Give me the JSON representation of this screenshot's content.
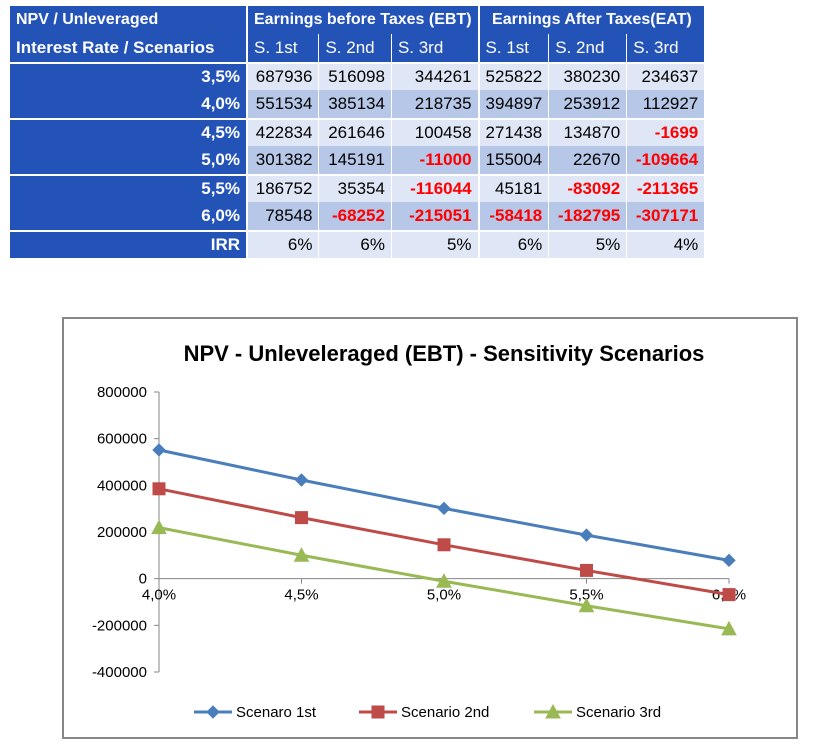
{
  "table": {
    "corner_label": "NPV / Unleveraged",
    "group_headers": [
      "Earnings before Taxes (EBT)",
      "Earnings After Taxes(EAT)"
    ],
    "row_header_label": "Interest Rate / Scenarios",
    "scenario_headers": [
      "S. 1st",
      "S. 2nd",
      "S. 3rd",
      "S. 1st",
      "S. 2nd",
      "S. 3rd"
    ],
    "rows": [
      {
        "rate": "3,5%",
        "values": [
          "687936",
          "516098",
          "344261",
          "525822",
          "380230",
          "234637"
        ]
      },
      {
        "rate": "4,0%",
        "values": [
          "551534",
          "385134",
          "218735",
          "394897",
          "253912",
          "112927"
        ]
      },
      {
        "rate": "4,5%",
        "values": [
          "422834",
          "261646",
          "100458",
          "271438",
          "134870",
          "-1699"
        ]
      },
      {
        "rate": "5,0%",
        "values": [
          "301382",
          "145191",
          "-11000",
          "155004",
          "22670",
          "-109664"
        ]
      },
      {
        "rate": "5,5%",
        "values": [
          "186752",
          "35354",
          "-116044",
          "45181",
          "-83092",
          "-211365"
        ]
      },
      {
        "rate": "6,0%",
        "values": [
          "78548",
          "-68252",
          "-215051",
          "-58418",
          "-182795",
          "-307171"
        ]
      }
    ],
    "irr_label": "IRR",
    "irr_values": [
      "6%",
      "6%",
      "5%",
      "6%",
      "5%",
      "4%"
    ],
    "negative_color": "#ff0000",
    "header_color": "#2453b8"
  },
  "chart_data": {
    "type": "line",
    "title": "NPV - Unleveleraged (EBT) - Sensitivity Scenarios",
    "categories": [
      "4,0%",
      "4,5%",
      "5,0%",
      "5,5%",
      "6,0%"
    ],
    "ylim": [
      -400000,
      800000
    ],
    "yticks": [
      -400000,
      -200000,
      0,
      200000,
      400000,
      600000,
      800000
    ],
    "grid": false,
    "legend_position": "bottom",
    "series": [
      {
        "name": "Scenaro 1st",
        "values": [
          551534,
          422834,
          301382,
          186752,
          78548
        ],
        "color": "#4a7ebb",
        "marker": "diamond"
      },
      {
        "name": "Scenario 2nd",
        "values": [
          385134,
          261646,
          145191,
          35354,
          -68252
        ],
        "color": "#be4b48",
        "marker": "square"
      },
      {
        "name": "Scenario 3rd",
        "values": [
          218735,
          100458,
          -11000,
          -116044,
          -215051
        ],
        "color": "#98b954",
        "marker": "triangle"
      }
    ]
  }
}
